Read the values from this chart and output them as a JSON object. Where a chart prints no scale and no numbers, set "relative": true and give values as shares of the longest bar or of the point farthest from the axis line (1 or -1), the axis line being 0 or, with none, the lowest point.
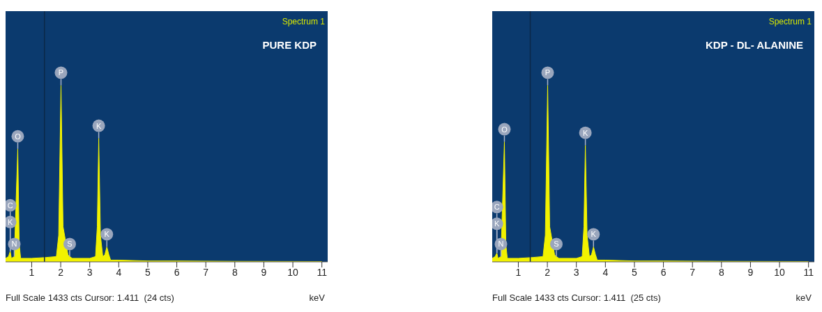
{
  "chart_data": [
    {
      "type": "area",
      "title": "PURE KDP",
      "xlabel": "keV",
      "relative": true,
      "color": "#f2f200",
      "xlim": [
        0.1,
        11.2
      ],
      "xticks": [
        1,
        2,
        3,
        4,
        5,
        6,
        7,
        8,
        9,
        10,
        11
      ],
      "x": [
        0.1,
        0.2,
        0.26,
        0.3,
        0.4,
        0.52,
        0.57,
        0.62,
        1.0,
        1.5,
        1.85,
        1.93,
        2.01,
        2.08,
        2.25,
        2.31,
        2.4,
        3.0,
        3.2,
        3.26,
        3.31,
        3.37,
        3.45,
        3.52,
        3.59,
        3.66,
        3.72,
        4.0,
        5.0,
        6.0,
        8.0,
        11.0
      ],
      "values": [
        0.02,
        0.03,
        0.06,
        0.02,
        0.03,
        0.64,
        0.1,
        0.02,
        0.02,
        0.025,
        0.03,
        0.15,
        1.0,
        0.2,
        0.04,
        0.03,
        0.02,
        0.02,
        0.03,
        0.2,
        0.7,
        0.15,
        0.03,
        0.04,
        0.085,
        0.04,
        0.01,
        0.01,
        0.005,
        0.005,
        0.003,
        0.002
      ],
      "ref_lines": [
        {
          "axis": "x",
          "value": 1.44,
          "color": "#0b2748"
        }
      ],
      "annotations": [
        "Spectrum 1",
        "Full Scale 1433 cts Cursor: 1.411  (24 cts)",
        {
          "text": "C",
          "x": 0.26,
          "y": 0.06
        },
        {
          "text": "K",
          "x": 0.26,
          "y": 0.06
        },
        {
          "text": "N",
          "x": 0.4,
          "y": 0.03
        },
        {
          "text": "O",
          "x": 0.52,
          "y": 0.64
        },
        {
          "text": "P",
          "x": 2.01,
          "y": 1.0
        },
        {
          "text": "S",
          "x": 2.31,
          "y": 0.03
        },
        {
          "text": "K",
          "x": 3.31,
          "y": 0.7
        },
        {
          "text": "K",
          "x": 3.59,
          "y": 0.085
        }
      ]
    },
    {
      "type": "area",
      "title": "KDP - DL- ALANINE",
      "xlabel": "keV",
      "relative": true,
      "color": "#f2f200",
      "xlim": [
        0.1,
        11.2
      ],
      "xticks": [
        1,
        2,
        3,
        4,
        5,
        6,
        7,
        8,
        9,
        10,
        11
      ],
      "x": [
        0.1,
        0.2,
        0.26,
        0.3,
        0.4,
        0.52,
        0.57,
        0.62,
        1.0,
        1.5,
        1.85,
        1.93,
        2.01,
        2.08,
        2.25,
        2.31,
        2.4,
        3.0,
        3.2,
        3.26,
        3.31,
        3.37,
        3.45,
        3.52,
        3.59,
        3.66,
        3.72,
        4.0,
        5.0,
        6.0,
        8.0,
        11.0
      ],
      "values": [
        0.02,
        0.03,
        0.05,
        0.02,
        0.03,
        0.68,
        0.1,
        0.02,
        0.02,
        0.025,
        0.03,
        0.15,
        1.0,
        0.2,
        0.04,
        0.03,
        0.02,
        0.02,
        0.03,
        0.2,
        0.66,
        0.15,
        0.03,
        0.04,
        0.085,
        0.04,
        0.01,
        0.01,
        0.005,
        0.005,
        0.003,
        0.002
      ],
      "ref_lines": [
        {
          "axis": "x",
          "value": 1.411,
          "color": "#0b2748"
        }
      ],
      "annotations": [
        "Spectrum 1",
        "Full Scale 1433 cts Cursor: 1.411  (25 cts)",
        {
          "text": "C",
          "x": 0.26,
          "y": 0.05
        },
        {
          "text": "K",
          "x": 0.26,
          "y": 0.05
        },
        {
          "text": "N",
          "x": 0.4,
          "y": 0.03
        },
        {
          "text": "O",
          "x": 0.52,
          "y": 0.68
        },
        {
          "text": "P",
          "x": 2.01,
          "y": 1.0
        },
        {
          "text": "S",
          "x": 2.31,
          "y": 0.03
        },
        {
          "text": "K",
          "x": 3.31,
          "y": 0.66
        },
        {
          "text": "K",
          "x": 3.59,
          "y": 0.085
        }
      ]
    }
  ]
}
